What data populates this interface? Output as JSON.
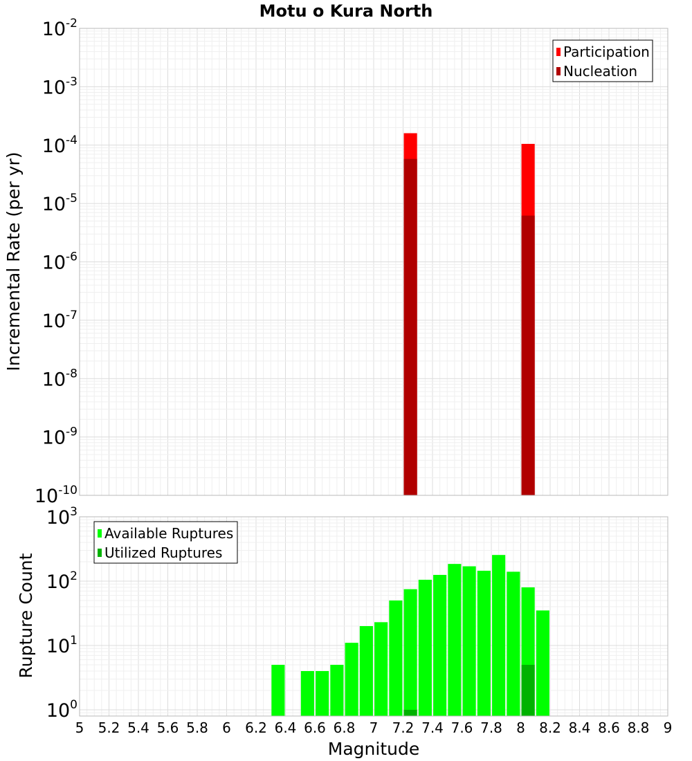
{
  "chart_data": {
    "title": "Motu o Kura North",
    "xlabel": "Magnitude",
    "xlim": [
      5,
      9
    ],
    "x_ticks": [
      "5",
      "5.2",
      "5.4",
      "5.6",
      "5.8",
      "6",
      "6.2",
      "6.4",
      "6.6",
      "6.8",
      "7",
      "7.2",
      "7.4",
      "7.6",
      "7.8",
      "8",
      "8.2",
      "8.4",
      "8.6",
      "8.8",
      "9"
    ],
    "panels": [
      {
        "id": "rate",
        "type": "bar",
        "scale": "log",
        "ylabel": "Incremental Rate (per yr)",
        "ylim_exp": [
          -10,
          -2
        ],
        "y_ticks": [
          {
            "base": "10",
            "exp": "-2"
          },
          {
            "base": "10",
            "exp": "-3"
          },
          {
            "base": "10",
            "exp": "-4"
          },
          {
            "base": "10",
            "exp": "-5"
          },
          {
            "base": "10",
            "exp": "-6"
          },
          {
            "base": "10",
            "exp": "-7"
          },
          {
            "base": "10",
            "exp": "-8"
          },
          {
            "base": "10",
            "exp": "-9"
          },
          {
            "base": "10",
            "exp": "-10"
          }
        ],
        "bar_width": 0.09,
        "legend_position": "top-right",
        "series": [
          {
            "name": "Participation",
            "color": "#ff0000",
            "x": [
              7.25,
              8.05
            ],
            "values": [
              0.00016,
              0.000105
            ]
          },
          {
            "name": "Nucleation",
            "color": "#b00000",
            "x": [
              7.25,
              8.05
            ],
            "values": [
              5.8e-05,
              6.2e-06
            ]
          }
        ]
      },
      {
        "id": "count",
        "type": "bar",
        "scale": "log",
        "ylabel": "Rupture Count",
        "ylim": [
          0.8,
          1000
        ],
        "y_ticks": [
          {
            "base": "10",
            "exp": "3",
            "value": 1000
          },
          {
            "base": "10",
            "exp": "2",
            "value": 100
          },
          {
            "base": "10",
            "exp": "1",
            "value": 10
          },
          {
            "base": "10",
            "exp": "0",
            "value": 1
          }
        ],
        "bar_width": 0.09,
        "legend_position": "top-left",
        "series": [
          {
            "name": "Available Ruptures",
            "color": "#00ff00",
            "x": [
              6.35,
              6.55,
              6.65,
              6.75,
              6.85,
              6.95,
              7.05,
              7.15,
              7.25,
              7.35,
              7.45,
              7.55,
              7.65,
              7.75,
              7.85,
              7.95,
              8.05,
              8.15
            ],
            "values": [
              5,
              4,
              4,
              5,
              11,
              20,
              23,
              50,
              75,
              105,
              125,
              185,
              170,
              145,
              255,
              140,
              80,
              35
            ]
          },
          {
            "name": "Utilized Ruptures",
            "color": "#00b200",
            "x": [
              7.25,
              8.05
            ],
            "values": [
              1,
              5
            ]
          }
        ]
      }
    ]
  }
}
